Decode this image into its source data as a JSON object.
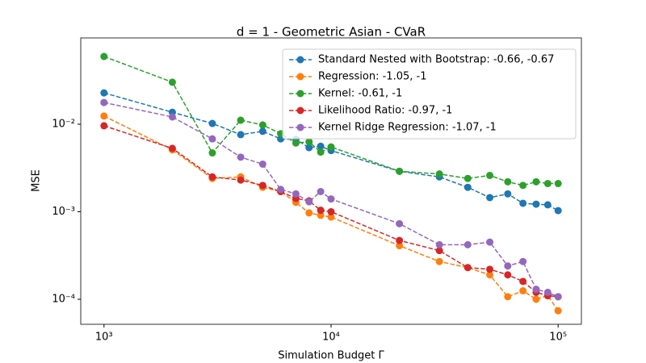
{
  "chart_data": {
    "type": "line",
    "title": "d = 1 - Geometric Asian - CVaR",
    "xlabel": "Simulation Budget Γ",
    "ylabel": "MSE",
    "x": [
      1000,
      2000,
      3000,
      4000,
      5000,
      6000,
      7000,
      8000,
      9000,
      10000,
      20000,
      30000,
      40000,
      50000,
      60000,
      70000,
      80000,
      90000,
      100000
    ],
    "xscale": "log",
    "yscale": "log",
    "xlim": [
      790,
      126600
    ],
    "ylim": [
      5.18e-05,
      0.0968
    ],
    "xticks": [
      {
        "value": 1000,
        "label": "10³"
      },
      {
        "value": 10000,
        "label": "10⁴"
      },
      {
        "value": 100000,
        "label": "10⁵"
      }
    ],
    "yticks": [
      {
        "value": 0.0001,
        "label": "10⁻⁴"
      },
      {
        "value": 0.001,
        "label": "10⁻³"
      },
      {
        "value": 0.01,
        "label": "10⁻²"
      }
    ],
    "legend": "upper right",
    "series": [
      {
        "name": "Standard Nested with Bootstrap: -0.66, -0.67",
        "color": "#1f77b4",
        "values": [
          0.0228,
          0.0137,
          0.0102,
          0.0076,
          0.0083,
          0.0068,
          0.0067,
          0.0054,
          0.0056,
          0.005,
          0.0029,
          0.0025,
          0.0019,
          0.00145,
          0.0016,
          0.00125,
          0.00122,
          0.0012,
          0.00103
        ]
      },
      {
        "name": "Regression: -1.05, -1",
        "color": "#ff7f0e",
        "values": [
          0.0124,
          0.0051,
          0.0024,
          0.0025,
          0.0019,
          0.0017,
          0.00128,
          0.00097,
          0.00091,
          0.00087,
          0.00041,
          0.00027,
          0.00023,
          0.00019,
          0.000107,
          0.000125,
          0.0001,
          0.00011,
          7.4e-05
        ]
      },
      {
        "name": "Kernel: -0.61, -1",
        "color": "#2ca02c",
        "values": [
          0.0594,
          0.0302,
          0.0047,
          0.0111,
          0.0098,
          0.0078,
          0.0061,
          0.0063,
          0.0048,
          0.0055,
          0.0029,
          0.0027,
          0.0024,
          0.0026,
          0.0022,
          0.002,
          0.0022,
          0.0021,
          0.0021
        ]
      },
      {
        "name": "Likelihood Ratio: -0.97, -1",
        "color": "#d62728",
        "values": [
          0.0096,
          0.0053,
          0.0025,
          0.0023,
          0.002,
          0.0017,
          0.00142,
          0.00133,
          0.00104,
          0.001,
          0.00047,
          0.00036,
          0.00023,
          0.00022,
          0.00019,
          0.00016,
          0.00012,
          0.00011,
          0.000107
        ]
      },
      {
        "name": "Kernel Ridge Regression: -1.07, -1",
        "color": "#9467bd",
        "values": [
          0.0177,
          0.0121,
          0.0068,
          0.0042,
          0.0035,
          0.0018,
          0.0016,
          0.0013,
          0.0017,
          0.0014,
          0.00073,
          0.00042,
          0.00042,
          0.00045,
          0.00024,
          0.00027,
          0.00013,
          0.00012,
          0.000107
        ]
      }
    ]
  }
}
